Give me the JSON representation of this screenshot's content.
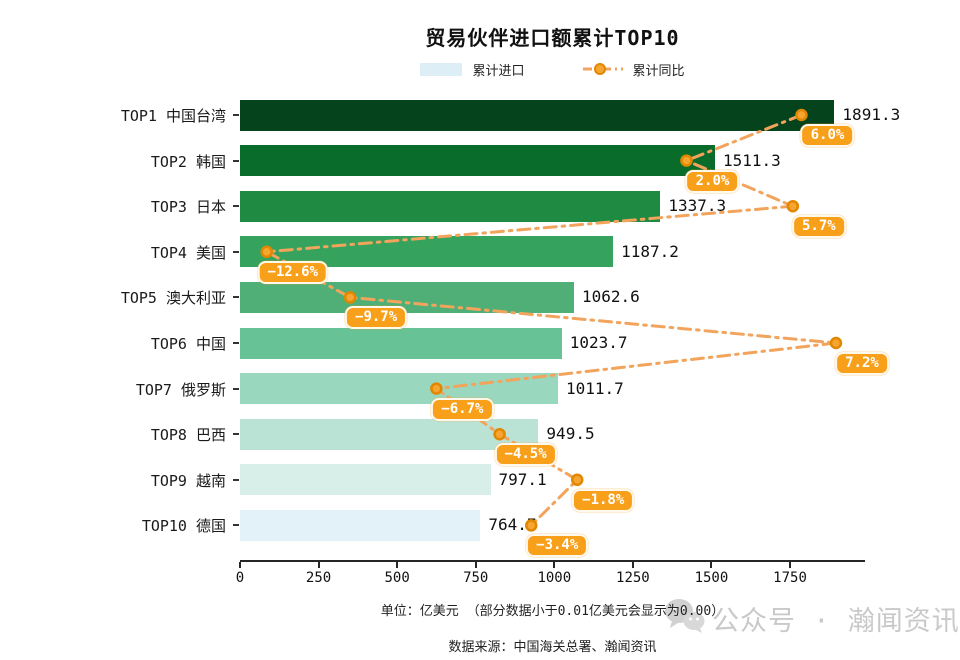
{
  "title": "贸易伙伴进口额累计TOP10",
  "legend": {
    "bar_label": "累计进口",
    "line_label": "累计同比",
    "bar_swatch_color": "#ddeef6",
    "line_color": "#f2a45c"
  },
  "footer": {
    "unit_note": "单位：亿美元 （部分数据小于0.01亿美元会显示为0.00）",
    "source": "数据来源：中国海关总署、瀚闻资讯"
  },
  "watermark": {
    "icon": "wechat-icon",
    "text": "公众号 · 瀚闻资讯"
  },
  "chart_data": {
    "type": "bar",
    "orientation": "horizontal",
    "title": "贸易伙伴进口额累计TOP10",
    "categories": [
      "TOP1 中国台湾",
      "TOP2 韩国",
      "TOP3 日本",
      "TOP4 美国",
      "TOP5 澳大利亚",
      "TOP6 中国",
      "TOP7 俄罗斯",
      "TOP8 巴西",
      "TOP9 越南",
      "TOP10 德国"
    ],
    "series": [
      {
        "name": "累计进口",
        "unit": "亿美元",
        "values": [
          1891.3,
          1511.3,
          1337.3,
          1187.2,
          1062.6,
          1023.7,
          1011.7,
          949.5,
          797.1,
          764.7
        ]
      },
      {
        "name": "累计同比",
        "unit": "%",
        "values": [
          6.0,
          2.0,
          5.7,
          -12.6,
          -9.7,
          7.2,
          -6.7,
          -4.5,
          -1.8,
          -3.4
        ]
      }
    ],
    "value_labels": [
      "1891.3",
      "1511.3",
      "1337.3",
      "1187.2",
      "1062.6",
      "1023.7",
      "1011.7",
      "949.5",
      "797.1",
      "764.7"
    ],
    "pct_labels": [
      "6.0%",
      "2.0%",
      "5.7%",
      "−12.6%",
      "−9.7%",
      "7.2%",
      "−6.7%",
      "−4.5%",
      "−1.8%",
      "−3.4%"
    ],
    "bar_colors": [
      "#05431d",
      "#0a6c2b",
      "#1f8b42",
      "#35a25d",
      "#50af76",
      "#67c295",
      "#9ad7bf",
      "#bae3d5",
      "#d8efe9",
      "#e2f2f8"
    ],
    "x_ticks": [
      0,
      250,
      500,
      750,
      1000,
      1250,
      1500,
      1750
    ],
    "xlim": [
      0,
      1988
    ],
    "pct_axis_range": [
      -13.53,
      8.21
    ],
    "grid": false,
    "legend_position": "top-center",
    "line_style": "dash-dot",
    "line_color": "#f2a45c",
    "marker_fill": "#f6a530",
    "marker_edge": "#e18700",
    "badge_color": "#f9a01b"
  }
}
